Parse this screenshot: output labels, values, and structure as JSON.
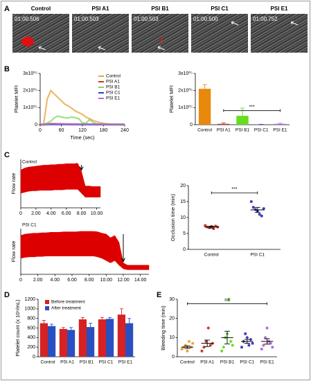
{
  "panels": [
    "A",
    "B",
    "C",
    "D",
    "E"
  ],
  "images": [
    {
      "label": "Control",
      "time": "01:00.506"
    },
    {
      "label": "PSI A1",
      "time": "01:00.503"
    },
    {
      "label": "PSI B1",
      "time": "01:00.503"
    },
    {
      "label": "PSI C1",
      "time": "01:00.500"
    },
    {
      "label": "PSI E1",
      "time": "01:00.752"
    }
  ],
  "chart_data": [
    {
      "type": "line",
      "xlabel": "Time (sec)",
      "ylabel": "Platelet MFI",
      "legend": "top-right",
      "x": [
        0,
        10,
        20,
        30,
        40,
        50,
        60,
        70,
        80,
        90,
        100,
        110,
        120,
        130,
        140,
        150,
        160,
        170,
        180,
        190,
        200,
        210,
        220,
        230,
        240
      ],
      "xlim": [
        0,
        240
      ],
      "xticks": [
        0,
        60,
        120,
        180,
        240
      ],
      "ylim": [
        0,
        300000
      ],
      "yticks": [
        0,
        {
          "value": 100000,
          "label": "1x10⁰⁵"
        },
        {
          "value": 200000,
          "label": "2x10⁰⁵"
        },
        {
          "value": 300000,
          "label": "3x10⁰⁵"
        }
      ],
      "series": [
        {
          "name": "Control",
          "color": "#e8a33d",
          "values": [
            0,
            5000,
            150000,
            200000,
            180000,
            160000,
            140000,
            120000,
            110000,
            95000,
            80000,
            70000,
            60000,
            45000,
            35000,
            25000,
            18000,
            12000,
            8000,
            5000,
            3000,
            2000,
            1000,
            1000,
            0
          ]
        },
        {
          "name": "PSI A1",
          "color": "#c0392b",
          "values": [
            0,
            1000,
            4000,
            6000,
            6000,
            5000,
            5000,
            4000,
            4000,
            3000,
            3000,
            3000,
            2000,
            2000,
            2000,
            2000,
            1000,
            1000,
            1000,
            1000,
            1000,
            1000,
            1000,
            1000,
            1000
          ]
        },
        {
          "name": "PSI B1",
          "color": "#7ed957",
          "values": [
            0,
            2000,
            10000,
            20000,
            40000,
            50000,
            45000,
            40000,
            40000,
            45000,
            40000,
            35000,
            10000,
            8000,
            30000,
            15000,
            5000,
            3000,
            2000,
            1000,
            1000,
            1000,
            0,
            0,
            0
          ]
        },
        {
          "name": "PSI C1",
          "color": "#3b3bbf",
          "values": [
            0,
            500,
            1000,
            1000,
            1000,
            1000,
            1000,
            1000,
            1000,
            1000,
            1000,
            1000,
            1000,
            1000,
            1000,
            1000,
            1000,
            1000,
            1000,
            1000,
            1000,
            1000,
            1000,
            1000,
            1000
          ]
        },
        {
          "name": "PSI E1",
          "color": "#b36bd6",
          "values": [
            0,
            1000,
            3000,
            4000,
            4000,
            4000,
            4000,
            4000,
            4000,
            3000,
            3000,
            3000,
            3000,
            3000,
            3000,
            3000,
            3000,
            3000,
            2000,
            2000,
            2000,
            2000,
            2000,
            2000,
            2000
          ]
        }
      ]
    },
    {
      "type": "bar",
      "ylabel": "Platelet MFI",
      "annotation": "***",
      "categories": [
        "Control",
        "PSI A1",
        "PSI B1",
        "PSI C1",
        "PSI E1"
      ],
      "colors": [
        "#e8890c",
        "#c0392b",
        "#66dd22",
        "#3b3bbf",
        "#b36bd6"
      ],
      "series": [
        {
          "values": [
            210000,
            5000,
            52000,
            1000,
            5000
          ],
          "errors": [
            25000,
            5000,
            45000,
            1000,
            3000
          ]
        }
      ],
      "ylim": [
        0,
        300000
      ],
      "yticks": [
        0,
        {
          "value": 100000,
          "label": "1x10⁰⁵"
        },
        {
          "value": 200000,
          "label": "2x10⁰⁵"
        },
        {
          "value": 300000,
          "label": "3x10⁰⁵"
        }
      ]
    },
    {
      "type": "trace",
      "title": "Control",
      "ylabel": "Flow rate",
      "color": "#dd0000",
      "x": [
        0,
        0.5,
        1,
        1.5,
        2,
        2.5,
        3,
        3.5,
        4,
        4.5,
        5,
        5.5,
        6,
        6.5,
        7,
        7.5,
        8,
        8.5,
        9,
        9.5,
        10,
        10.5
      ],
      "upper": [
        78,
        82,
        84,
        85,
        86,
        87,
        88,
        88,
        89,
        89,
        90,
        90,
        91,
        91,
        91,
        92,
        75,
        45,
        45,
        44,
        44,
        44
      ],
      "lower": [
        30,
        32,
        34,
        35,
        35,
        36,
        36,
        36,
        36,
        37,
        37,
        37,
        38,
        38,
        38,
        38,
        30,
        22,
        22,
        22,
        22,
        22
      ],
      "arrow_x": 8,
      "xlim": [
        0,
        10.5
      ],
      "ylim": [
        0,
        100
      ],
      "xticks": [
        0,
        {
          "value": 2,
          "label": "2.00"
        },
        {
          "value": 4,
          "label": "4.00"
        },
        {
          "value": 6,
          "label": "6.00"
        },
        {
          "value": 8,
          "label": "8.00"
        },
        {
          "value": 10,
          "label": "10.00"
        }
      ]
    },
    {
      "type": "trace",
      "title": "PSI C1",
      "ylabel": "Flow rate",
      "color": "#dd0000",
      "x": [
        0,
        0.5,
        1,
        1.5,
        2,
        2.5,
        3,
        3.5,
        4,
        4.5,
        5,
        5.5,
        6,
        6.5,
        7,
        7.5,
        8,
        8.5,
        9,
        9.5,
        10,
        10.5,
        11,
        11.5,
        12,
        12.5,
        13,
        13.5,
        14,
        14.5,
        15
      ],
      "upper": [
        85,
        88,
        89,
        90,
        90,
        91,
        91,
        92,
        92,
        92,
        93,
        93,
        93,
        93,
        94,
        94,
        94,
        94,
        93,
        90,
        88,
        80,
        85,
        70,
        25,
        20,
        20,
        20,
        20,
        20,
        20
      ],
      "lower": [
        35,
        37,
        38,
        38,
        39,
        39,
        40,
        40,
        40,
        40,
        40,
        40,
        40,
        40,
        40,
        40,
        40,
        40,
        38,
        35,
        30,
        25,
        30,
        20,
        12,
        10,
        10,
        10,
        10,
        10,
        10
      ],
      "arrow_x": 12,
      "xlim": [
        0,
        15
      ],
      "ylim": [
        0,
        100
      ],
      "xticks": [
        0,
        {
          "value": 2,
          "label": "2.00"
        },
        {
          "value": 4,
          "label": "4.00"
        },
        {
          "value": 6,
          "label": "6.00"
        },
        {
          "value": 8,
          "label": "8.00"
        },
        {
          "value": 10,
          "label": "10.00"
        },
        {
          "value": 12,
          "label": "12.00"
        },
        {
          "value": 14,
          "label": "14.00"
        }
      ]
    },
    {
      "type": "dot",
      "ylabel": "Occlusion time (min)",
      "annotation": "***",
      "ylim": [
        0,
        20
      ],
      "yticks": [
        0,
        5,
        10,
        15,
        20
      ],
      "groups": [
        {
          "name": "Control",
          "color": "#c0392b",
          "values": [
            7.5,
            7.0,
            6.8,
            7.2,
            6.5,
            7.3,
            7.0
          ],
          "mean": 7.0,
          "error": 0.3
        },
        {
          "name": "PSI C1",
          "color": "#3b3bbf",
          "values": [
            15.0,
            13.2,
            12.5,
            12.0,
            11.0,
            10.5,
            12.8
          ],
          "mean": 12.4,
          "error": 0.8
        }
      ]
    },
    {
      "type": "grouped-bar",
      "ylabel": "Platelet count (x 10⁶/mL)",
      "legend": "top-left",
      "categories": [
        "Control",
        "PSI A1",
        "PSI B1",
        "PSI C1",
        "PSI E1"
      ],
      "ylim": [
        0,
        1200
      ],
      "yticks": [
        0,
        200,
        400,
        600,
        800,
        1000,
        1200
      ],
      "series": [
        {
          "name": "Before treatment",
          "color": "#d62222",
          "values": [
            700,
            580,
            780,
            780,
            880
          ],
          "errors": [
            60,
            30,
            40,
            40,
            120
          ]
        },
        {
          "name": "After treatment",
          "color": "#2a4fc0",
          "values": [
            640,
            560,
            620,
            790,
            700
          ],
          "errors": [
            40,
            50,
            80,
            30,
            100
          ]
        }
      ]
    },
    {
      "type": "dot",
      "ylabel": "Bleeding time (min)",
      "annotation": "ns",
      "ylim": [
        0,
        30
      ],
      "yticks": [
        0,
        10,
        20,
        30
      ],
      "groups": [
        {
          "name": "Control",
          "color": "#e8a33d",
          "values": [
            4,
            5,
            6,
            3,
            8,
            5,
            7
          ],
          "mean": 5,
          "error": 0.7
        },
        {
          "name": "PSI A1",
          "color": "#c0392b",
          "values": [
            3,
            5,
            8,
            15,
            6,
            7
          ],
          "mean": 7,
          "error": 1.7
        },
        {
          "name": "PSI B1",
          "color": "#66dd22",
          "values": [
            3,
            5,
            10,
            12,
            30,
            8,
            6
          ],
          "mean": 10,
          "error": 3.3
        },
        {
          "name": "PSI C1",
          "color": "#3b3bbf",
          "values": [
            5,
            8,
            12,
            10,
            6,
            9,
            7
          ],
          "mean": 8,
          "error": 1.0
        },
        {
          "name": "PSI E1",
          "color": "#b36bd6",
          "values": [
            4,
            6,
            10,
            15,
            8,
            7,
            5
          ],
          "mean": 8,
          "error": 1.4
        }
      ]
    }
  ]
}
